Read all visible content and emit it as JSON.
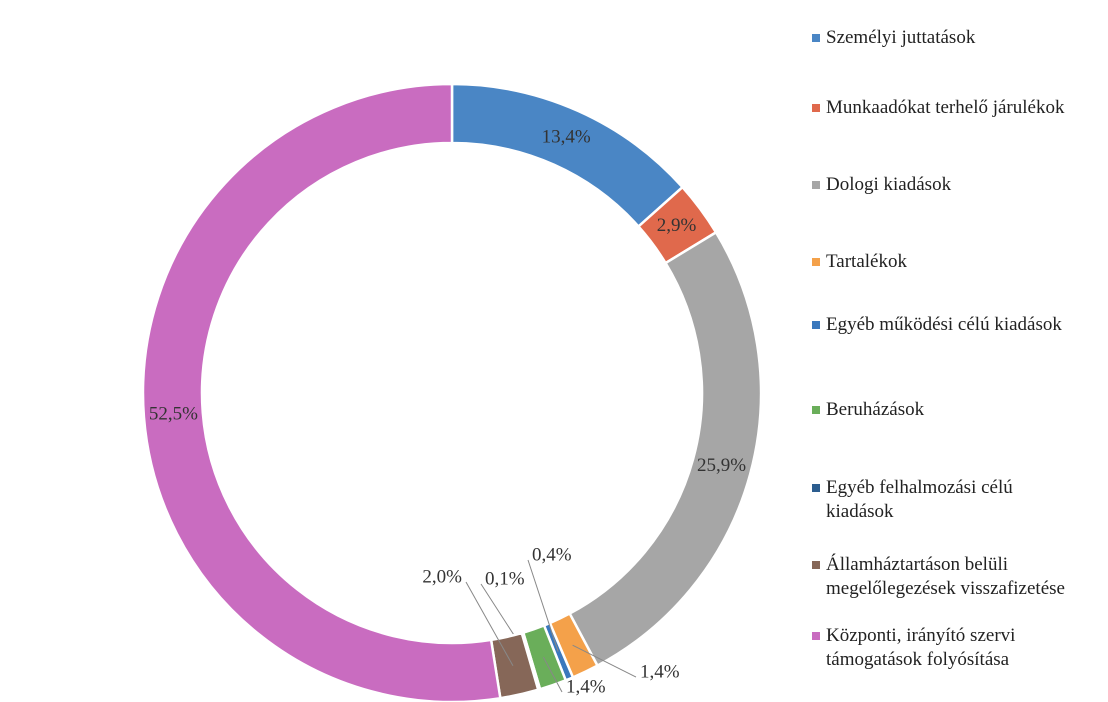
{
  "chart_data": {
    "type": "donut",
    "categories": [
      "Személyi juttatások",
      "Munkaadókat terhelő járulékok",
      "Dologi kiadások",
      "Tartalékok",
      "Egyéb működési célú kiadások",
      "Beruházások",
      "Egyéb felhalmozási célú kiadások",
      "Államháztartáson belüli megelőlegezések visszafizetése",
      "Központi, irányító szervi támogatások folyósítása"
    ],
    "values": [
      13.4,
      2.9,
      25.9,
      1.4,
      0.4,
      1.4,
      0.1,
      2.0,
      52.5
    ],
    "value_labels": [
      "13,4%",
      "2,9%",
      "25,9%",
      "1,4%",
      "0,4%",
      "1,4%",
      "0,1%",
      "2,0%",
      "52,5%"
    ],
    "colors": [
      "#4a86c5",
      "#e0694c",
      "#a6a6a6",
      "#f4a14a",
      "#3a78bd",
      "#6aae5a",
      "#2c5d8f",
      "#866758",
      "#c96cc0"
    ],
    "legend": "right"
  }
}
